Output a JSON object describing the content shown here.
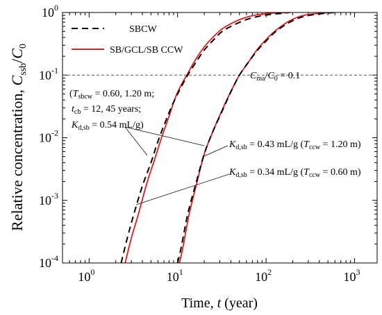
{
  "chart_data": {
    "type": "line",
    "title": "",
    "xlabel": "Time, t (year)",
    "ylabel": "Relative concentration, Cssb/C0",
    "xscale": "log",
    "yscale": "log",
    "xlim": [
      0.5,
      1800
    ],
    "ylim": [
      0.0001,
      1
    ],
    "x_ticks": [
      {
        "value": 1,
        "label": "10",
        "exp": "0"
      },
      {
        "value": 10,
        "label": "10",
        "exp": "1"
      },
      {
        "value": 100,
        "label": "10",
        "exp": "2"
      },
      {
        "value": 1000,
        "label": "10",
        "exp": "3"
      }
    ],
    "y_ticks": [
      {
        "value": 0.0001,
        "label": "10",
        "exp": "-4"
      },
      {
        "value": 0.001,
        "label": "10",
        "exp": "-3"
      },
      {
        "value": 0.01,
        "label": "10",
        "exp": "-2"
      },
      {
        "value": 0.1,
        "label": "10",
        "exp": "-1"
      },
      {
        "value": 1,
        "label": "10",
        "exp": "0"
      }
    ],
    "grid": false,
    "legend": {
      "position": "top-left",
      "entries": [
        {
          "name": "SBCW",
          "color": "#000000",
          "style": "dashed"
        },
        {
          "name": "SB/GCL/SB CCW",
          "color": "#e8191c",
          "style": "solid"
        }
      ]
    },
    "reference_line": {
      "y": 0.1,
      "label": "Cma/C0 = 0.1"
    },
    "series": [
      {
        "name": "SBCW",
        "group": "tcb = 12 years",
        "color": "#000000",
        "style": "dashed",
        "x": [
          2.3,
          2.7,
          3.2,
          4.0,
          5.0,
          6.0,
          7.5,
          9.0,
          11.0,
          13.0,
          16.0,
          20.0,
          25.0,
          32.0,
          45.0,
          60.0,
          80.0,
          110.0,
          150.0,
          180.0
        ],
        "y": [
          0.0001,
          0.00025,
          0.0006,
          0.0017,
          0.004,
          0.0088,
          0.02,
          0.037,
          0.065,
          0.1,
          0.158,
          0.251,
          0.355,
          0.5,
          0.65,
          0.77,
          0.86,
          0.93,
          0.97,
          1.0
        ]
      },
      {
        "name": "SB/GCL/SB CCW",
        "group": "tcb = 12 years",
        "color": "#e8191c",
        "style": "solid",
        "x": [
          2.55,
          3.0,
          3.6,
          4.5,
          5.5,
          6.5,
          8.0,
          9.5,
          11.0,
          13.0,
          16.0,
          20.0,
          25.0,
          32.0,
          45.0,
          60.0,
          80.0,
          110.0,
          150.0,
          190.0
        ],
        "y": [
          0.0001,
          0.00025,
          0.0006,
          0.0019,
          0.0045,
          0.0095,
          0.022,
          0.045,
          0.07,
          0.106,
          0.178,
          0.282,
          0.4,
          0.55,
          0.72,
          0.84,
          0.92,
          0.97,
          0.99,
          1.0
        ]
      },
      {
        "name": "SBCW",
        "group": "tcb = 45 years",
        "color": "#000000",
        "style": "dashed",
        "x": [
          10.0,
          11.0,
          13.0,
          16.0,
          20.0,
          25.0,
          32.0,
          40.0,
          50.0,
          63.0,
          80.0,
          100.0,
          125.0,
          160.0,
          200.0,
          250.0,
          320.0,
          400.0,
          500.0,
          600.0
        ],
        "y": [
          0.0001,
          0.00018,
          0.0006,
          0.0018,
          0.0055,
          0.0125,
          0.027,
          0.054,
          0.1,
          0.16,
          0.25,
          0.35,
          0.48,
          0.62,
          0.74,
          0.84,
          0.91,
          0.95,
          0.98,
          1.0
        ]
      },
      {
        "name": "SB/GCL/SB CCW",
        "group": "tcb = 45 years",
        "color": "#e8191c",
        "style": "solid",
        "x": [
          10.5,
          11.5,
          13.5,
          16.5,
          20.0,
          25.0,
          32.0,
          40.0,
          50.0,
          63.0,
          80.0,
          100.0,
          125.0,
          160.0,
          200.0,
          250.0,
          320.0,
          400.0,
          500.0,
          600.0
        ],
        "y": [
          0.0001,
          0.00018,
          0.0006,
          0.0019,
          0.0055,
          0.0125,
          0.028,
          0.055,
          0.1,
          0.16,
          0.26,
          0.37,
          0.5,
          0.65,
          0.78,
          0.88,
          0.94,
          0.97,
          0.99,
          1.0
        ]
      }
    ],
    "annotations": [
      {
        "id": "params",
        "lines": [
          "(Tsbcw = 0.60, 1.20 m;",
          "tcb = 12, 45 years;",
          "Kd,sb = 0.54 mL/g)"
        ]
      },
      {
        "id": "k43",
        "text": "Kd,sb = 0.43 mL/g (Tccw = 1.20 m)"
      },
      {
        "id": "k34",
        "text": "Kd,sb = 0.34 mL/g (Tccw = 0.60 m)"
      }
    ]
  }
}
